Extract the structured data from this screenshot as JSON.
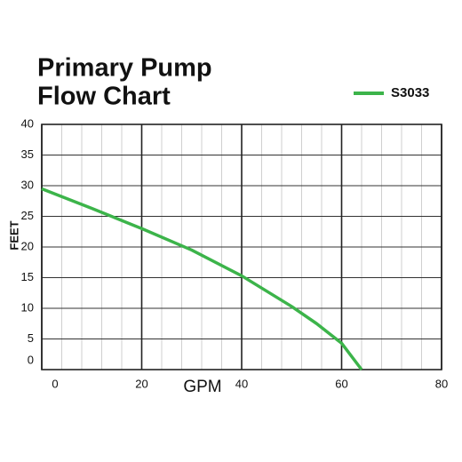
{
  "chart_data": {
    "type": "line",
    "title": [
      "Primary Pump",
      "Flow Chart"
    ],
    "x_label": "GPM",
    "y_label": "FEET",
    "x": [
      0,
      10,
      20,
      30,
      40,
      50,
      55,
      60,
      64
    ],
    "series": [
      {
        "name": "S3033",
        "color": "#3cb44a",
        "values": [
          29.5,
          26.3,
          23,
          19.5,
          15.3,
          10.3,
          7.5,
          4.3,
          0
        ]
      }
    ],
    "xlim": [
      0,
      80
    ],
    "xticks": [
      0,
      20,
      40,
      60,
      80
    ],
    "xminorticks": [
      4,
      8,
      12,
      16,
      24,
      28,
      32,
      36,
      44,
      48,
      52,
      56,
      64,
      68,
      72,
      76
    ],
    "ylim": [
      0,
      40
    ],
    "yticks": [
      0,
      5,
      10,
      15,
      20,
      25,
      30,
      35,
      40
    ],
    "grid": true,
    "legend": "top-right"
  }
}
